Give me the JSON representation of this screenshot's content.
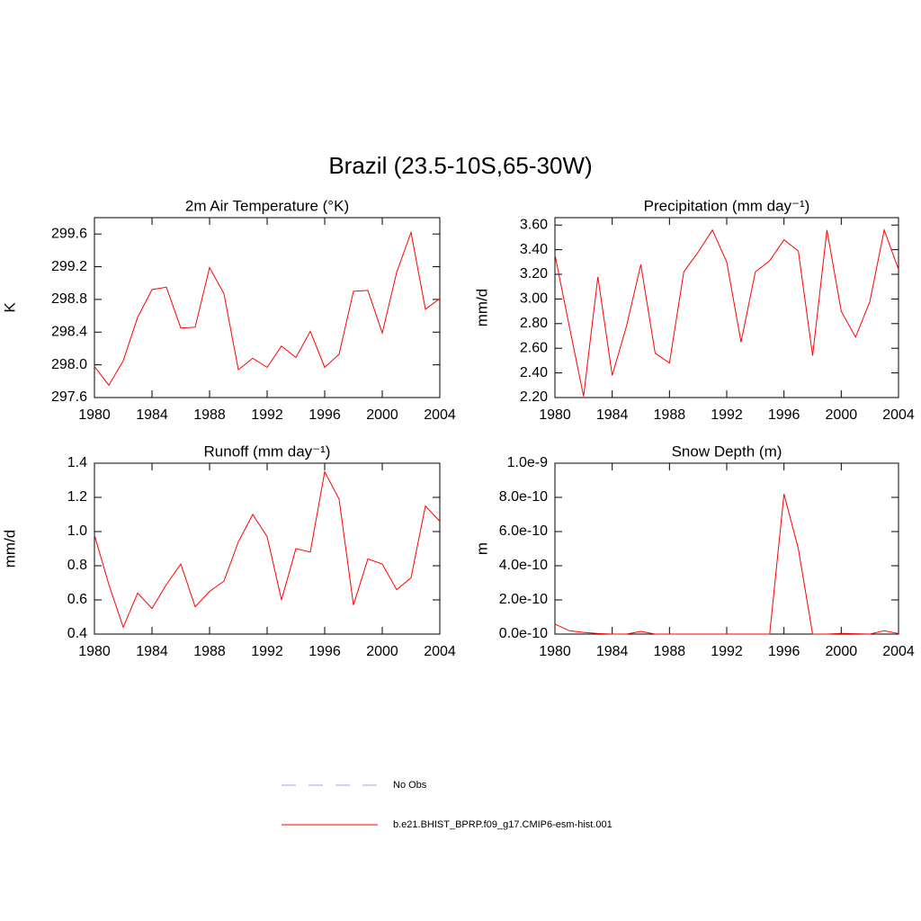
{
  "title": "Brazil (23.5-10S,65-30W)",
  "legend": [
    {
      "label": "No Obs",
      "color": "#a0a0ff",
      "style": "dashed"
    },
    {
      "label": "b.e21.BHIST_BPRP.f09_g17.CMIP6-esm-hist.001",
      "color": "#ff0000",
      "style": "solid"
    }
  ],
  "chart_data": [
    {
      "type": "line",
      "title": "2m Air Temperature (°K)",
      "y_label": "K",
      "color": "#ff0000",
      "x": [
        1980,
        1981,
        1982,
        1983,
        1984,
        1985,
        1986,
        1987,
        1988,
        1989,
        1990,
        1991,
        1992,
        1993,
        1994,
        1995,
        1996,
        1997,
        1998,
        1999,
        2000,
        2001,
        2002,
        2003,
        2004
      ],
      "values": [
        297.98,
        297.75,
        298.05,
        298.58,
        298.92,
        298.95,
        298.45,
        298.46,
        299.19,
        298.87,
        297.94,
        298.08,
        297.97,
        298.23,
        298.09,
        298.41,
        297.97,
        298.13,
        298.9,
        298.91,
        298.39,
        299.13,
        299.62,
        298.68,
        298.81
      ],
      "xlim": [
        1980,
        2004
      ],
      "xticks": [
        1980,
        1984,
        1988,
        1992,
        1996,
        2000,
        2004
      ],
      "ylim": [
        297.6,
        299.8
      ],
      "yticks": [
        299.6,
        299.2,
        298.8,
        298.4,
        {
          "value": 298,
          "label": "298.0"
        },
        297.6
      ]
    },
    {
      "type": "line",
      "title": "Precipitation (mm day⁻¹)",
      "y_label": "mm/d",
      "color": "#ff0000",
      "x": [
        1980,
        1981,
        1982,
        1983,
        1984,
        1985,
        1986,
        1987,
        1988,
        1989,
        1990,
        1991,
        1992,
        1993,
        1994,
        1995,
        1996,
        1997,
        1998,
        1999,
        2000,
        2001,
        2002,
        2003,
        2004
      ],
      "values": [
        3.36,
        2.78,
        2.21,
        3.18,
        2.38,
        2.78,
        3.28,
        2.56,
        2.48,
        3.22,
        3.38,
        3.56,
        3.3,
        2.65,
        3.22,
        3.31,
        3.48,
        3.39,
        2.54,
        3.56,
        2.9,
        2.69,
        2.98,
        3.56,
        3.24
      ],
      "xlim": [
        1980,
        2004
      ],
      "xticks": [
        1980,
        1984,
        1988,
        1992,
        1996,
        2000,
        2004
      ],
      "ylim": [
        2.2,
        3.66
      ],
      "yticks": [
        {
          "value": 3.6,
          "label": "3.60"
        },
        {
          "value": 3.4,
          "label": "3.40"
        },
        {
          "value": 3.2,
          "label": "3.20"
        },
        {
          "value": 3,
          "label": "3.00"
        },
        {
          "value": 2.8,
          "label": "2.80"
        },
        {
          "value": 2.6,
          "label": "2.60"
        },
        {
          "value": 2.4,
          "label": "2.40"
        },
        {
          "value": 2.2,
          "label": "2.20"
        }
      ]
    },
    {
      "type": "line",
      "title": "Runoff (mm day⁻¹)",
      "y_label": "mm/d",
      "color": "#ff0000",
      "x": [
        1980,
        1981,
        1982,
        1983,
        1984,
        1985,
        1986,
        1987,
        1988,
        1989,
        1990,
        1991,
        1992,
        1993,
        1994,
        1995,
        1996,
        1997,
        1998,
        1999,
        2000,
        2001,
        2002,
        2003,
        2004
      ],
      "values": [
        0.98,
        0.69,
        0.44,
        0.64,
        0.55,
        0.69,
        0.81,
        0.56,
        0.65,
        0.71,
        0.94,
        1.1,
        0.97,
        0.6,
        0.9,
        0.88,
        1.35,
        1.19,
        0.57,
        0.84,
        0.81,
        0.66,
        0.73,
        1.15,
        1.06
      ],
      "xlim": [
        1980,
        2004
      ],
      "xticks": [
        1980,
        1984,
        1988,
        1992,
        1996,
        2000,
        2004
      ],
      "ylim": [
        0.4,
        1.4
      ],
      "yticks": [
        1.4,
        1.2,
        {
          "value": 1,
          "label": "1.0"
        },
        0.8,
        0.6,
        0.4
      ]
    },
    {
      "type": "line",
      "title": "Snow Depth (m)",
      "y_label": "m",
      "color": "#ff0000",
      "x": [
        1980,
        1981,
        1982,
        1983,
        1984,
        1985,
        1986,
        1987,
        1988,
        1989,
        1990,
        1991,
        1992,
        1993,
        1994,
        1995,
        1996,
        1997,
        1998,
        1999,
        2000,
        2001,
        2002,
        2003,
        2004
      ],
      "values": [
        5.8e-11,
        2e-11,
        1e-11,
        3e-12,
        0,
        0,
        1.6e-11,
        0,
        0,
        0,
        0,
        0,
        0,
        0,
        0,
        0,
        8.2e-10,
        5e-10,
        0,
        0,
        4e-12,
        2e-12,
        0,
        2e-11,
        3e-12
      ],
      "xlim": [
        1980,
        2004
      ],
      "xticks": [
        1980,
        1984,
        1988,
        1992,
        1996,
        2000,
        2004
      ],
      "ylim": [
        0,
        1e-09
      ],
      "yticks": [
        {
          "value": 1e-09,
          "label": "1.0e-9"
        },
        {
          "value": 8e-10,
          "label": "8.0e-10"
        },
        {
          "value": 6e-10,
          "label": "6.0e-10"
        },
        {
          "value": 4e-10,
          "label": "4.0e-10"
        },
        {
          "value": 2e-10,
          "label": "2.0e-10"
        },
        {
          "value": 0,
          "label": "0.0e-10"
        }
      ]
    }
  ]
}
